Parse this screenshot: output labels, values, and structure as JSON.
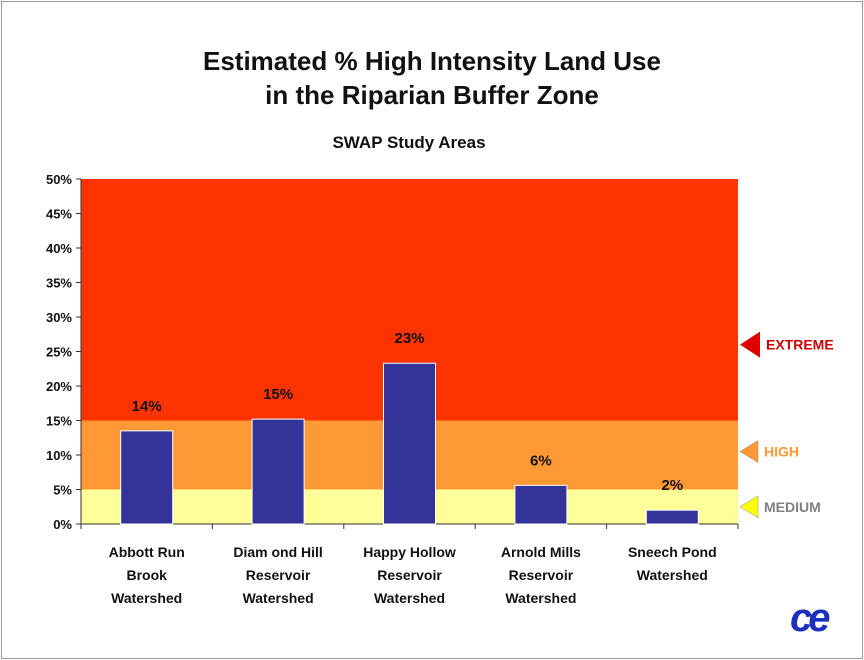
{
  "title_line1": "Estimated % High Intensity Land Use",
  "title_line2": "in the Riparian Buffer Zone",
  "subtitle": "SWAP Study Areas",
  "logo_text": "ce",
  "chart_data": {
    "type": "bar",
    "categories": [
      [
        "Abbott Run",
        "Brook",
        "Watershed"
      ],
      [
        "Diam ond Hill",
        "Reservoir",
        "Watershed"
      ],
      [
        "Happy Hollow",
        "Reservoir",
        "Watershed"
      ],
      [
        "Arnold Mills",
        "Reservoir",
        "Watershed"
      ],
      [
        "Sneech Pond",
        "Watershed"
      ]
    ],
    "values": [
      13.5,
      15.2,
      23.3,
      5.6,
      2.0
    ],
    "data_labels": [
      "14%",
      "15%",
      "23%",
      "6%",
      "2%"
    ],
    "ylim": [
      0,
      50
    ],
    "yticks": [
      "0%",
      "5%",
      "10%",
      "15%",
      "20%",
      "25%",
      "30%",
      "35%",
      "40%",
      "45%",
      "50%"
    ],
    "bar_color": "#333399",
    "zones": [
      {
        "label": "MEDIUM",
        "from": 0,
        "to": 5,
        "color": "#ffff99",
        "label_color": "#808080",
        "marker_color": "#ffff00",
        "marker_at": 2.5
      },
      {
        "label": "HIGH",
        "from": 5,
        "to": 15,
        "color": "#ff9933",
        "label_color": "#ff9933",
        "marker_color": "#ff9933",
        "marker_at": 10.5
      },
      {
        "label": "EXTREME",
        "from": 15,
        "to": 50,
        "color": "#ff3300",
        "label_color": "#cc0000",
        "marker_color": "#e00000",
        "marker_at": 26
      }
    ]
  }
}
